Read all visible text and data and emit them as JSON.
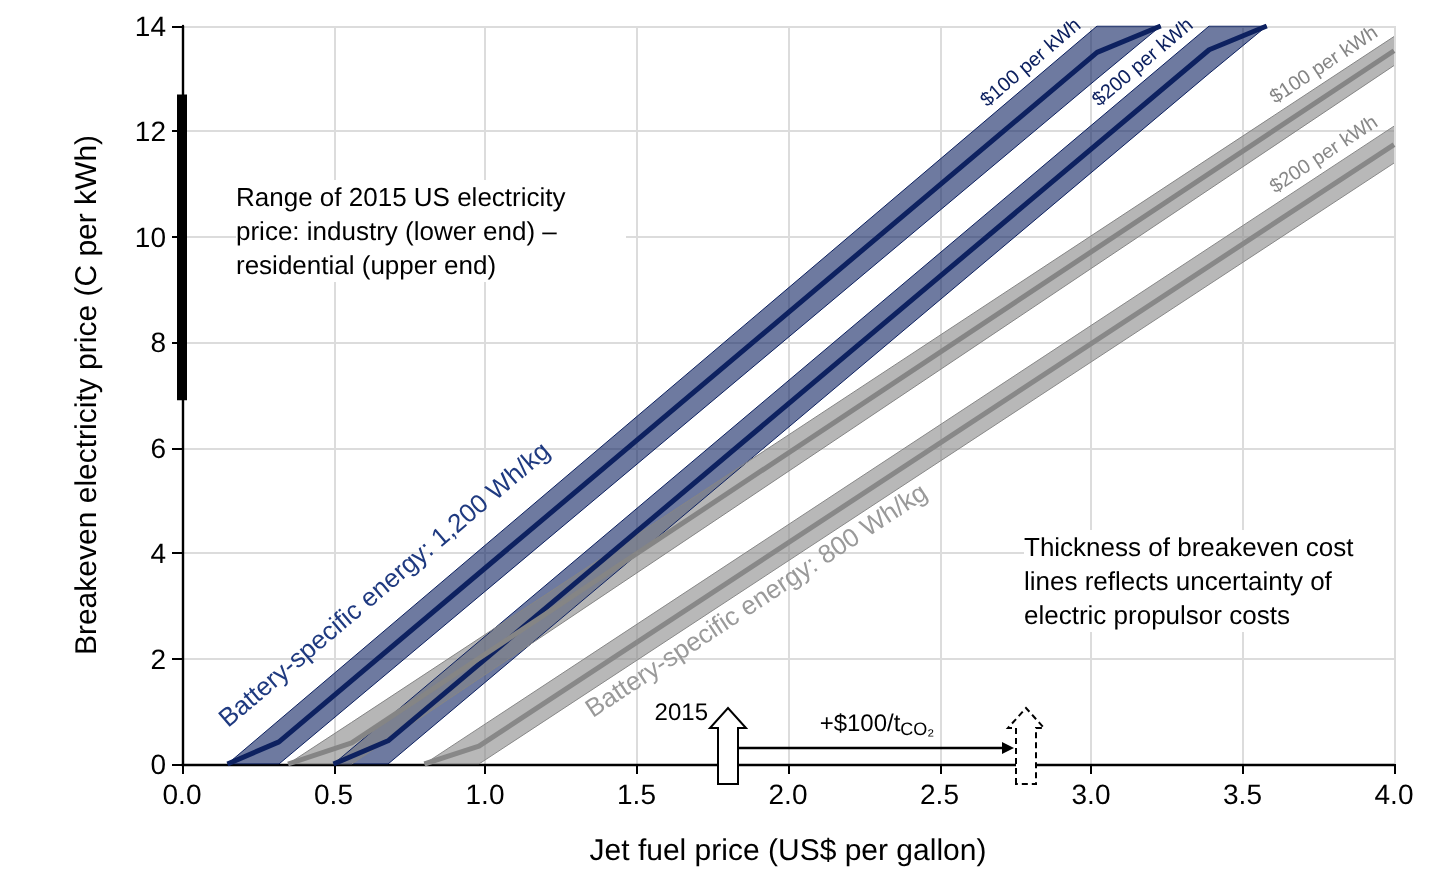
{
  "chart_data": {
    "type": "line",
    "xlabel": "Jet fuel price (US$ per gallon)",
    "ylabel": "Breakeven electricity price (C per kWh)",
    "xlim": [
      0,
      4
    ],
    "ylim": [
      0,
      14
    ],
    "xticks": [
      {
        "value": 0,
        "label": "0.0"
      },
      {
        "value": 0.5,
        "label": "0.5"
      },
      {
        "value": 1,
        "label": "1.0"
      },
      {
        "value": 1.5,
        "label": "1.5"
      },
      {
        "value": 2,
        "label": "2.0"
      },
      {
        "value": 2.5,
        "label": "2.5"
      },
      {
        "value": 3,
        "label": "3.0"
      },
      {
        "value": 3.5,
        "label": "3.5"
      },
      {
        "value": 4,
        "label": "4.0"
      }
    ],
    "yticks": [
      0,
      2,
      4,
      6,
      8,
      10,
      12,
      14
    ],
    "grid": true,
    "legend": false,
    "series": [
      {
        "name": "$100 per kWh",
        "color": "#0d2160",
        "x": [
          0.15,
          0.32,
          3.02,
          3.23
        ],
        "values": [
          0,
          0.42,
          13.5,
          14
        ],
        "lower": [
          0,
          0,
          13.0,
          14
        ],
        "upper": [
          0,
          0.83,
          14,
          14
        ]
      },
      {
        "name": "$200 per kWh",
        "color": "#0d2160",
        "x": [
          0.5,
          0.68,
          3.39,
          3.58
        ],
        "values": [
          0,
          0.44,
          13.55,
          14
        ],
        "lower": [
          0,
          0,
          13.1,
          14
        ],
        "upper": [
          0,
          0.87,
          14,
          14
        ]
      },
      {
        "name": "$100 per kWh",
        "color": "#858585",
        "x": [
          0.35,
          0.56,
          4.0
        ],
        "values": [
          0,
          0.4,
          13.53
        ],
        "lower": [
          0,
          0,
          13.25
        ],
        "upper": [
          0,
          0.79,
          13.8
        ]
      },
      {
        "name": "$200 per kWh",
        "color": "#888888",
        "x": [
          0.8,
          0.98,
          4.0
        ],
        "values": [
          0,
          0.34,
          11.75
        ],
        "lower": [
          0,
          0,
          11.4
        ],
        "upper": [
          0,
          0.68,
          12.1
        ]
      },
      {
        "type": "bar",
        "color": "#000000",
        "x": [
          0
        ],
        "base": [
          6.9
        ],
        "values": [
          5.8
        ]
      }
    ],
    "annotations": [
      "Range of 2015 US electricity price: industry (lower end) – residential (upper end)",
      "Battery-specific energy: 1,200 Wh/kg",
      "Battery-specific energy: 800 Wh/kg",
      "2015",
      "+$100/t$_{CO₂}$",
      "Thickness of breakeven cost lines reflects uncertainty of electric propulsor costs"
    ]
  }
}
